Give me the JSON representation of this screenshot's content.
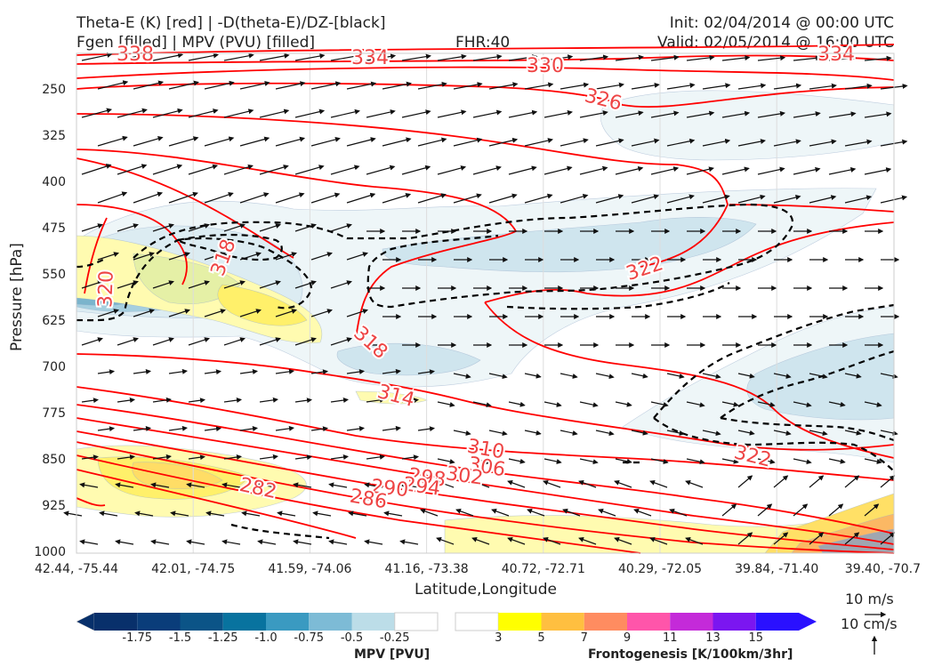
{
  "header": {
    "left_line1": "Theta-E (K) [red] | -D(theta-E)/DZ-[black]",
    "left_line2": "Fgen [filled] | MPV (PVU) [filled]",
    "center": "FHR:40",
    "right_line1": "Init: 02/04/2014 @ 00:00 UTC",
    "right_line2": "Valid: 02/05/2014 @ 16:00 UTC"
  },
  "chart_data": {
    "type": "cross-section",
    "title": "Theta-E (K) [red] | -D(theta-E)/DZ-[black]",
    "subtitle": "Fgen [filled] | MPV (PVU) [filled]",
    "xlabel": "Latitude,Longitude",
    "ylabel": "Pressure [hPa]",
    "x_ticks": [
      "42.44, -75.44",
      "42.01, -74.75",
      "41.59, -74.06",
      "41.16, -73.38",
      "40.72, -72.71",
      "40.29, -72.05",
      "39.84, -71.40",
      "39.40, -70.7"
    ],
    "y_ticks": [
      250,
      325,
      400,
      475,
      550,
      625,
      700,
      775,
      850,
      925,
      1000
    ],
    "y_range": [
      1000,
      190
    ],
    "y_inverted": true,
    "theta_e_contour_labels": [
      "338",
      "334",
      "330",
      "334",
      "326",
      "322",
      "322",
      "318",
      "318",
      "320",
      "314",
      "310",
      "306",
      "302",
      "298",
      "294",
      "290",
      "286",
      "282"
    ],
    "theta_e_color": "#ff0000",
    "dthetae_dz_color": "#000000",
    "mpv_colorbar": {
      "label": "MPV [PVU]",
      "ticks": [
        "-1.75",
        "-1.5",
        "-1.25",
        "-1.0",
        "-0.75",
        "-0.5",
        "-0.25"
      ],
      "colors": [
        "#08306b",
        "#0a3d7a",
        "#0b5487",
        "#08739f",
        "#3a9ac1",
        "#7dbbd6",
        "#bcdde8",
        "#ffffff"
      ]
    },
    "fgen_colorbar": {
      "label": "Frontogenesis [K/100km/3hr]",
      "ticks": [
        "3",
        "5",
        "7",
        "9",
        "11",
        "13",
        "15"
      ],
      "colors": [
        "#ffffff",
        "#ffff00",
        "#ffbf40",
        "#ff8c60",
        "#ff55aa",
        "#c42ad9",
        "#7b16f0",
        "#2a10ff"
      ]
    },
    "vector_reference": {
      "horizontal": "10 m/s",
      "vertical": "10 cm/s"
    }
  }
}
